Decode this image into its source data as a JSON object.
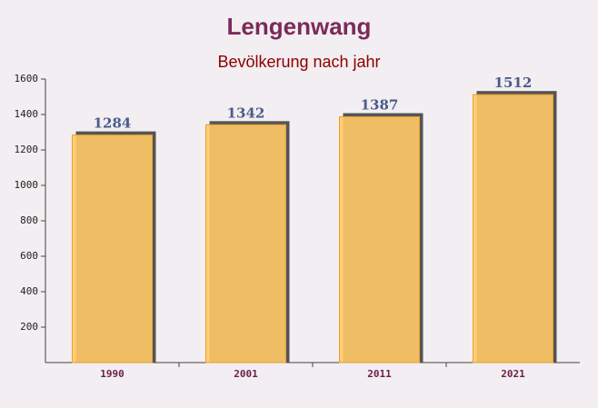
{
  "chart_data": {
    "type": "bar",
    "title": "Lengenwang",
    "subtitle": "Bevölkerung nach jahr",
    "categories": [
      "1990",
      "2001",
      "2011",
      "2021"
    ],
    "values": [
      1284,
      1342,
      1387,
      1512
    ],
    "color": "#ffc966",
    "ylim": [
      0,
      1600
    ],
    "yticks": [
      200,
      400,
      600,
      800,
      1000,
      1200,
      1400,
      1600
    ]
  }
}
